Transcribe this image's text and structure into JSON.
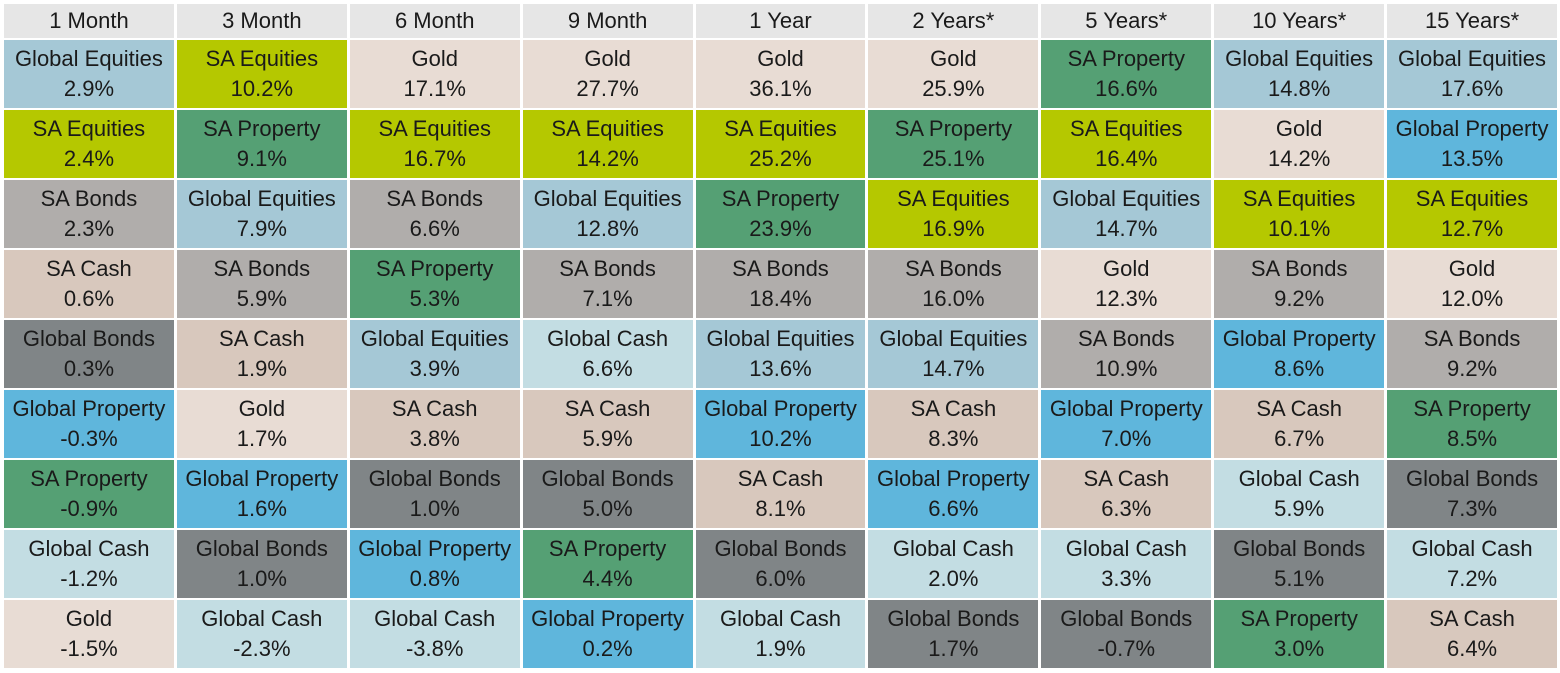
{
  "asset_colors": {
    "Global Equities": "#a5c8d6",
    "SA Equities": "#b5c800",
    "SA Bonds": "#b0adab",
    "SA Cash": "#d8c8bd",
    "Global Bonds": "#808587",
    "Global Property": "#5fb6dc",
    "SA Property": "#55a074",
    "Global Cash": "#c3dde3",
    "Gold": "#e8dcd4"
  },
  "chart_data": {
    "type": "table",
    "columns": [
      "1 Month",
      "3 Month",
      "6 Month",
      "9 Month",
      "1 Year",
      "2 Years*",
      "5 Years*",
      "10 Years*",
      "15 Years*"
    ],
    "rankings": [
      [
        {
          "asset": "Global Equities",
          "value": "2.9%"
        },
        {
          "asset": "SA Equities",
          "value": "2.4%"
        },
        {
          "asset": "SA Bonds",
          "value": "2.3%"
        },
        {
          "asset": "SA Cash",
          "value": "0.6%"
        },
        {
          "asset": "Global Bonds",
          "value": "0.3%"
        },
        {
          "asset": "Global Property",
          "value": "-0.3%"
        },
        {
          "asset": "SA Property",
          "value": "-0.9%"
        },
        {
          "asset": "Global Cash",
          "value": "-1.2%"
        },
        {
          "asset": "Gold",
          "value": "-1.5%"
        }
      ],
      [
        {
          "asset": "SA Equities",
          "value": "10.2%"
        },
        {
          "asset": "SA Property",
          "value": "9.1%"
        },
        {
          "asset": "Global Equities",
          "value": "7.9%"
        },
        {
          "asset": "SA Bonds",
          "value": "5.9%"
        },
        {
          "asset": "SA Cash",
          "value": "1.9%"
        },
        {
          "asset": "Gold",
          "value": "1.7%"
        },
        {
          "asset": "Global Property",
          "value": "1.6%"
        },
        {
          "asset": "Global Bonds",
          "value": "1.0%"
        },
        {
          "asset": "Global Cash",
          "value": "-2.3%"
        }
      ],
      [
        {
          "asset": "Gold",
          "value": "17.1%"
        },
        {
          "asset": "SA Equities",
          "value": "16.7%"
        },
        {
          "asset": "SA Bonds",
          "value": "6.6%"
        },
        {
          "asset": "SA Property",
          "value": "5.3%"
        },
        {
          "asset": "Global Equities",
          "value": "3.9%"
        },
        {
          "asset": "SA Cash",
          "value": "3.8%"
        },
        {
          "asset": "Global Bonds",
          "value": "1.0%"
        },
        {
          "asset": "Global Property",
          "value": "0.8%"
        },
        {
          "asset": "Global Cash",
          "value": "-3.8%"
        }
      ],
      [
        {
          "asset": "Gold",
          "value": "27.7%"
        },
        {
          "asset": "SA Equities",
          "value": "14.2%"
        },
        {
          "asset": "Global Equities",
          "value": "12.8%"
        },
        {
          "asset": "SA Bonds",
          "value": "7.1%"
        },
        {
          "asset": "Global Cash",
          "value": "6.6%"
        },
        {
          "asset": "SA Cash",
          "value": "5.9%"
        },
        {
          "asset": "Global Bonds",
          "value": "5.0%"
        },
        {
          "asset": "SA Property",
          "value": "4.4%"
        },
        {
          "asset": "Global Property",
          "value": "0.2%"
        }
      ],
      [
        {
          "asset": "Gold",
          "value": "36.1%"
        },
        {
          "asset": "SA Equities",
          "value": "25.2%"
        },
        {
          "asset": "SA Property",
          "value": "23.9%"
        },
        {
          "asset": "SA Bonds",
          "value": "18.4%"
        },
        {
          "asset": "Global Equities",
          "value": "13.6%"
        },
        {
          "asset": "Global Property",
          "value": "10.2%"
        },
        {
          "asset": "SA Cash",
          "value": "8.1%"
        },
        {
          "asset": "Global Bonds",
          "value": "6.0%"
        },
        {
          "asset": "Global Cash",
          "value": "1.9%"
        }
      ],
      [
        {
          "asset": "Gold",
          "value": "25.9%"
        },
        {
          "asset": "SA Property",
          "value": "25.1%"
        },
        {
          "asset": "SA Equities",
          "value": "16.9%"
        },
        {
          "asset": "SA Bonds",
          "value": "16.0%"
        },
        {
          "asset": "Global Equities",
          "value": "14.7%"
        },
        {
          "asset": "SA Cash",
          "value": "8.3%"
        },
        {
          "asset": "Global Property",
          "value": "6.6%"
        },
        {
          "asset": "Global Cash",
          "value": "2.0%"
        },
        {
          "asset": "Global Bonds",
          "value": "1.7%"
        }
      ],
      [
        {
          "asset": "SA Property",
          "value": "16.6%"
        },
        {
          "asset": "SA Equities",
          "value": "16.4%"
        },
        {
          "asset": "Global Equities",
          "value": "14.7%"
        },
        {
          "asset": "Gold",
          "value": "12.3%"
        },
        {
          "asset": "SA Bonds",
          "value": "10.9%"
        },
        {
          "asset": "Global Property",
          "value": "7.0%"
        },
        {
          "asset": "SA Cash",
          "value": "6.3%"
        },
        {
          "asset": "Global Cash",
          "value": "3.3%"
        },
        {
          "asset": "Global Bonds",
          "value": "-0.7%"
        }
      ],
      [
        {
          "asset": "Global Equities",
          "value": "14.8%"
        },
        {
          "asset": "Gold",
          "value": "14.2%"
        },
        {
          "asset": "SA Equities",
          "value": "10.1%"
        },
        {
          "asset": "SA Bonds",
          "value": "9.2%"
        },
        {
          "asset": "Global Property",
          "value": "8.6%"
        },
        {
          "asset": "SA Cash",
          "value": "6.7%"
        },
        {
          "asset": "Global Cash",
          "value": "5.9%"
        },
        {
          "asset": "Global Bonds",
          "value": "5.1%"
        },
        {
          "asset": "SA Property",
          "value": "3.0%"
        }
      ],
      [
        {
          "asset": "Global Equities",
          "value": "17.6%"
        },
        {
          "asset": "Global Property",
          "value": "13.5%"
        },
        {
          "asset": "SA Equities",
          "value": "12.7%"
        },
        {
          "asset": "Gold",
          "value": "12.0%"
        },
        {
          "asset": "SA Bonds",
          "value": "9.2%"
        },
        {
          "asset": "SA Property",
          "value": "8.5%"
        },
        {
          "asset": "Global Bonds",
          "value": "7.3%"
        },
        {
          "asset": "Global Cash",
          "value": "7.2%"
        },
        {
          "asset": "SA Cash",
          "value": "6.4%"
        }
      ]
    ]
  }
}
